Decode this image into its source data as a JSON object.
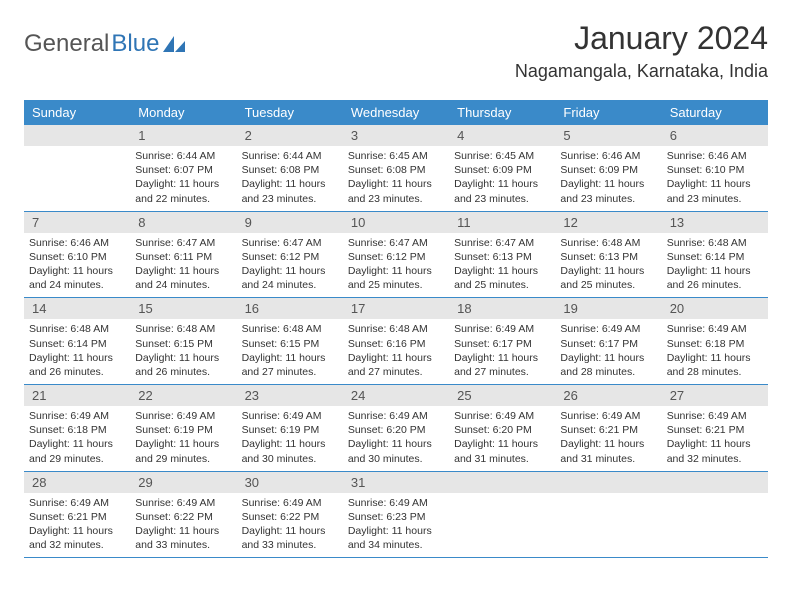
{
  "brand": {
    "general": "General",
    "blue": "Blue"
  },
  "title": "January 2024",
  "location": "Nagamangala, Karnataka, India",
  "colors": {
    "header_bg": "#3a8ac9",
    "header_text": "#ffffff",
    "daynum_bg": "#e6e6e6",
    "daynum_text": "#555555",
    "body_text": "#333333",
    "row_border": "#3a8ac9",
    "page_bg": "#ffffff",
    "logo_gray": "#555555",
    "logo_blue": "#2f75b5"
  },
  "weekdays": [
    "Sunday",
    "Monday",
    "Tuesday",
    "Wednesday",
    "Thursday",
    "Friday",
    "Saturday"
  ],
  "table": {
    "column_count": 7,
    "header_fontsize": 13,
    "daynum_fontsize": 13,
    "cell_fontsize": 10.5
  },
  "weeks": [
    [
      {
        "day": "",
        "sunrise": "",
        "sunset": "",
        "daylight": ""
      },
      {
        "day": "1",
        "sunrise": "6:44 AM",
        "sunset": "6:07 PM",
        "daylight": "11 hours and 22 minutes."
      },
      {
        "day": "2",
        "sunrise": "6:44 AM",
        "sunset": "6:08 PM",
        "daylight": "11 hours and 23 minutes."
      },
      {
        "day": "3",
        "sunrise": "6:45 AM",
        "sunset": "6:08 PM",
        "daylight": "11 hours and 23 minutes."
      },
      {
        "day": "4",
        "sunrise": "6:45 AM",
        "sunset": "6:09 PM",
        "daylight": "11 hours and 23 minutes."
      },
      {
        "day": "5",
        "sunrise": "6:46 AM",
        "sunset": "6:09 PM",
        "daylight": "11 hours and 23 minutes."
      },
      {
        "day": "6",
        "sunrise": "6:46 AM",
        "sunset": "6:10 PM",
        "daylight": "11 hours and 23 minutes."
      }
    ],
    [
      {
        "day": "7",
        "sunrise": "6:46 AM",
        "sunset": "6:10 PM",
        "daylight": "11 hours and 24 minutes."
      },
      {
        "day": "8",
        "sunrise": "6:47 AM",
        "sunset": "6:11 PM",
        "daylight": "11 hours and 24 minutes."
      },
      {
        "day": "9",
        "sunrise": "6:47 AM",
        "sunset": "6:12 PM",
        "daylight": "11 hours and 24 minutes."
      },
      {
        "day": "10",
        "sunrise": "6:47 AM",
        "sunset": "6:12 PM",
        "daylight": "11 hours and 25 minutes."
      },
      {
        "day": "11",
        "sunrise": "6:47 AM",
        "sunset": "6:13 PM",
        "daylight": "11 hours and 25 minutes."
      },
      {
        "day": "12",
        "sunrise": "6:48 AM",
        "sunset": "6:13 PM",
        "daylight": "11 hours and 25 minutes."
      },
      {
        "day": "13",
        "sunrise": "6:48 AM",
        "sunset": "6:14 PM",
        "daylight": "11 hours and 26 minutes."
      }
    ],
    [
      {
        "day": "14",
        "sunrise": "6:48 AM",
        "sunset": "6:14 PM",
        "daylight": "11 hours and 26 minutes."
      },
      {
        "day": "15",
        "sunrise": "6:48 AM",
        "sunset": "6:15 PM",
        "daylight": "11 hours and 26 minutes."
      },
      {
        "day": "16",
        "sunrise": "6:48 AM",
        "sunset": "6:15 PM",
        "daylight": "11 hours and 27 minutes."
      },
      {
        "day": "17",
        "sunrise": "6:48 AM",
        "sunset": "6:16 PM",
        "daylight": "11 hours and 27 minutes."
      },
      {
        "day": "18",
        "sunrise": "6:49 AM",
        "sunset": "6:17 PM",
        "daylight": "11 hours and 27 minutes."
      },
      {
        "day": "19",
        "sunrise": "6:49 AM",
        "sunset": "6:17 PM",
        "daylight": "11 hours and 28 minutes."
      },
      {
        "day": "20",
        "sunrise": "6:49 AM",
        "sunset": "6:18 PM",
        "daylight": "11 hours and 28 minutes."
      }
    ],
    [
      {
        "day": "21",
        "sunrise": "6:49 AM",
        "sunset": "6:18 PM",
        "daylight": "11 hours and 29 minutes."
      },
      {
        "day": "22",
        "sunrise": "6:49 AM",
        "sunset": "6:19 PM",
        "daylight": "11 hours and 29 minutes."
      },
      {
        "day": "23",
        "sunrise": "6:49 AM",
        "sunset": "6:19 PM",
        "daylight": "11 hours and 30 minutes."
      },
      {
        "day": "24",
        "sunrise": "6:49 AM",
        "sunset": "6:20 PM",
        "daylight": "11 hours and 30 minutes."
      },
      {
        "day": "25",
        "sunrise": "6:49 AM",
        "sunset": "6:20 PM",
        "daylight": "11 hours and 31 minutes."
      },
      {
        "day": "26",
        "sunrise": "6:49 AM",
        "sunset": "6:21 PM",
        "daylight": "11 hours and 31 minutes."
      },
      {
        "day": "27",
        "sunrise": "6:49 AM",
        "sunset": "6:21 PM",
        "daylight": "11 hours and 32 minutes."
      }
    ],
    [
      {
        "day": "28",
        "sunrise": "6:49 AM",
        "sunset": "6:21 PM",
        "daylight": "11 hours and 32 minutes."
      },
      {
        "day": "29",
        "sunrise": "6:49 AM",
        "sunset": "6:22 PM",
        "daylight": "11 hours and 33 minutes."
      },
      {
        "day": "30",
        "sunrise": "6:49 AM",
        "sunset": "6:22 PM",
        "daylight": "11 hours and 33 minutes."
      },
      {
        "day": "31",
        "sunrise": "6:49 AM",
        "sunset": "6:23 PM",
        "daylight": "11 hours and 34 minutes."
      },
      {
        "day": "",
        "sunrise": "",
        "sunset": "",
        "daylight": ""
      },
      {
        "day": "",
        "sunrise": "",
        "sunset": "",
        "daylight": ""
      },
      {
        "day": "",
        "sunrise": "",
        "sunset": "",
        "daylight": ""
      }
    ]
  ],
  "labels": {
    "sunrise": "Sunrise:",
    "sunset": "Sunset:",
    "daylight": "Daylight:"
  }
}
